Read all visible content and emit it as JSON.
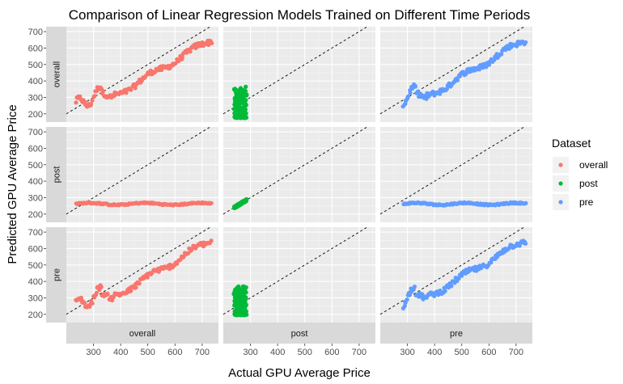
{
  "chart_data": {
    "type": "scatter",
    "title": "Comparison of Linear Regression Models Trained on Different Time Periods",
    "xlabel": "Actual GPU Average Price",
    "ylabel": "Predicted GPU Average Price",
    "xlim": [
      200,
      760
    ],
    "ylim": [
      150,
      730
    ],
    "x_ticks": [
      300,
      400,
      500,
      600,
      700
    ],
    "y_ticks": [
      200,
      300,
      400,
      500,
      600,
      700
    ],
    "reference_line": "y = x (dashed)",
    "grid": true,
    "row_facets": [
      "overall",
      "post",
      "pre"
    ],
    "col_facets": [
      "overall",
      "post",
      "pre"
    ],
    "legend": {
      "title": "Dataset",
      "position": "right",
      "entries": [
        {
          "name": "overall",
          "color": "#F8766D"
        },
        {
          "name": "post",
          "color": "#00BA38"
        },
        {
          "name": "pre",
          "color": "#619CFF"
        }
      ]
    },
    "panels": [
      {
        "row": "overall",
        "col": "overall",
        "series": "overall",
        "x_range": [
          235,
          735
        ],
        "trend": "follows_actual"
      },
      {
        "row": "overall",
        "col": "post",
        "series": "post",
        "x_range": [
          240,
          285
        ],
        "y_range": [
          175,
          370
        ]
      },
      {
        "row": "overall",
        "col": "pre",
        "series": "pre",
        "x_range": [
          285,
          735
        ],
        "trend": "follows_actual"
      },
      {
        "row": "post",
        "col": "overall",
        "series": "overall",
        "x_range": [
          235,
          735
        ],
        "y_level": 262
      },
      {
        "row": "post",
        "col": "post",
        "series": "post",
        "x_range": [
          240,
          285
        ],
        "trend": "follows_actual"
      },
      {
        "row": "post",
        "col": "pre",
        "series": "pre",
        "x_range": [
          285,
          735
        ],
        "y_level": 262
      },
      {
        "row": "pre",
        "col": "overall",
        "series": "overall",
        "x_range": [
          235,
          735
        ],
        "trend": "follows_actual"
      },
      {
        "row": "pre",
        "col": "post",
        "series": "post",
        "x_range": [
          240,
          285
        ],
        "y_range": [
          195,
          370
        ]
      },
      {
        "row": "pre",
        "col": "pre",
        "series": "pre",
        "x_range": [
          285,
          735
        ],
        "trend": "follows_actual"
      }
    ]
  }
}
